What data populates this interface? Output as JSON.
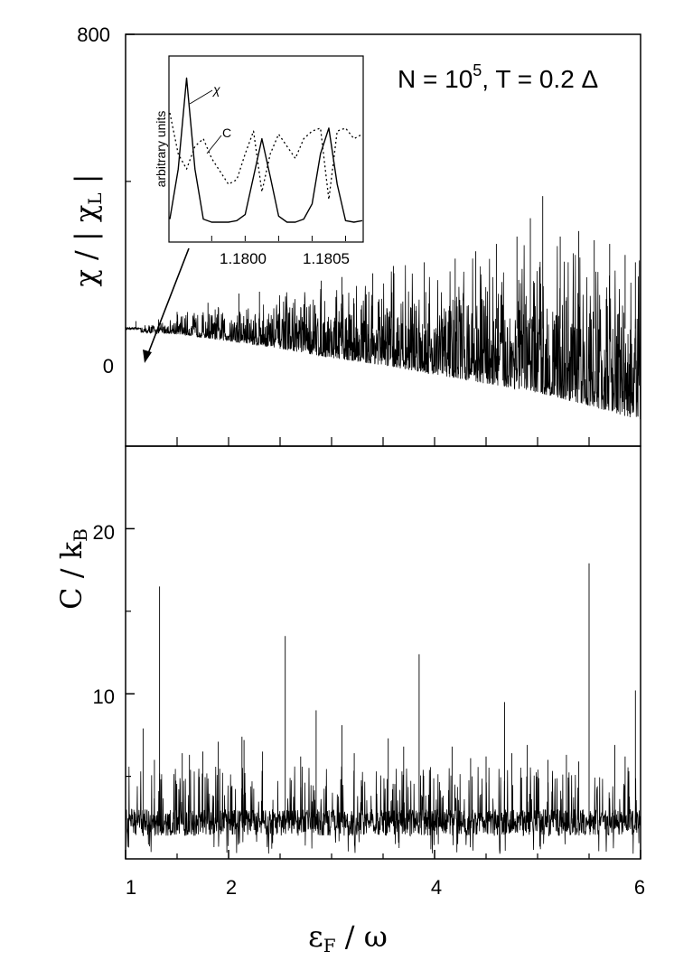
{
  "annotation": {
    "parameters_main": "N = 10",
    "parameters_exp": "5",
    "parameters_rest": ",  T = 0.2 Δ"
  },
  "chart_data": [
    {
      "id": "susceptibility",
      "type": "line",
      "ylabel_main": "χ / | χ",
      "ylabel_sub": "L",
      "ylabel_end": " |",
      "xlim": [
        1,
        6
      ],
      "ylim": [
        -320,
        800
      ],
      "yticks": [
        {
          "value": 0,
          "label": "0"
        },
        {
          "value": 800,
          "label": "800"
        }
      ],
      "yminor": [
        400
      ],
      "xminor": [
        1.5,
        2,
        2.5,
        3,
        3.5,
        4,
        4.5,
        5,
        5.5
      ],
      "series": [
        {
          "values_note_free": true,
          "envelope_x": [
            1.0,
            1.2,
            1.5,
            2.0,
            2.5,
            3.0,
            3.5,
            4.0,
            4.5,
            5.0,
            5.5,
            6.0
          ],
          "envelope_upper": [
            8,
            15,
            45,
            80,
            110,
            140,
            170,
            210,
            250,
            270,
            240,
            220
          ],
          "envelope_lower": [
            -5,
            -12,
            -15,
            -35,
            -55,
            -80,
            -100,
            -125,
            -150,
            -175,
            -210,
            -250
          ],
          "peak_x": [
            1.1,
            1.5,
            1.8,
            2.1,
            2.3,
            2.9,
            3.1,
            3.4,
            3.6,
            3.9,
            4.2,
            4.4,
            4.6,
            4.8,
            4.93,
            5.05,
            5.22,
            5.4,
            5.55,
            5.7,
            5.85,
            5.95
          ],
          "peak_y": [
            20,
            45,
            70,
            95,
            100,
            130,
            140,
            150,
            170,
            180,
            190,
            210,
            230,
            250,
            300,
            360,
            250,
            265,
            240,
            230,
            200,
            180
          ]
        }
      ],
      "inset": {
        "xlabel_ticks": [
          "1.1800",
          "1.1805"
        ],
        "ylabel": "arbitrary units",
        "series": [
          {
            "name": "χ",
            "x": [
              1.17955,
              1.1796,
              1.17965,
              1.1797,
              1.17975,
              1.1798,
              1.1799,
              1.17995,
              1.18,
              1.18005,
              1.1801,
              1.18015,
              1.1802,
              1.18025,
              1.1803,
              1.18035,
              1.1804,
              1.18045,
              1.1805,
              1.18055,
              1.1806,
              1.18065,
              1.1807
            ],
            "values": [
              0.02,
              0.35,
              0.95,
              0.35,
              0.02,
              0.0,
              0.0,
              0.01,
              0.05,
              0.3,
              0.55,
              0.3,
              0.04,
              0.0,
              0.0,
              0.02,
              0.12,
              0.45,
              0.62,
              0.25,
              0.01,
              0.0,
              0.01
            ]
          },
          {
            "name": "C",
            "x": [
              1.17955,
              1.1796,
              1.17965,
              1.1797,
              1.17975,
              1.1798,
              1.1799,
              1.17995,
              1.18,
              1.18005,
              1.1801,
              1.18015,
              1.1802,
              1.18025,
              1.1803,
              1.18035,
              1.1804,
              1.18045,
              1.1805,
              1.18055,
              1.1806,
              1.18065,
              1.1807
            ],
            "values": [
              0.72,
              0.45,
              0.35,
              0.5,
              0.55,
              0.42,
              0.25,
              0.28,
              0.45,
              0.6,
              0.2,
              0.45,
              0.58,
              0.5,
              0.42,
              0.55,
              0.6,
              0.62,
              0.15,
              0.6,
              0.62,
              0.55,
              0.58
            ]
          }
        ]
      }
    },
    {
      "id": "heat-capacity",
      "type": "line",
      "xlabel_main": "ε",
      "xlabel_sub": "F",
      "xlabel_end": " / ω",
      "ylabel_main": "C / k",
      "ylabel_sub": "B",
      "xlim": [
        1,
        6
      ],
      "ylim": [
        0,
        25
      ],
      "xticks": [
        {
          "value": 1,
          "label": "1"
        },
        {
          "value": 2,
          "label": "2"
        },
        {
          "value": 4,
          "label": "4"
        },
        {
          "value": 6,
          "label": "6"
        }
      ],
      "xminor": [
        1.5,
        2.5,
        3,
        3.5,
        4.5,
        5,
        5.5
      ],
      "yticks": [
        {
          "value": 10,
          "label": "10"
        },
        {
          "value": 20,
          "label": "20"
        }
      ],
      "yminor": [
        5,
        15
      ],
      "series": [
        {
          "baseline": 2.2,
          "spikes_x": [
            1.17,
            1.28,
            1.33,
            1.55,
            1.62,
            1.75,
            1.9,
            2.13,
            2.15,
            2.33,
            2.55,
            2.7,
            2.85,
            3.1,
            3.22,
            3.55,
            3.7,
            3.85,
            4.17,
            4.35,
            4.5,
            4.68,
            4.75,
            4.9,
            5.1,
            5.28,
            5.4,
            5.5,
            5.75,
            5.85,
            5.95
          ],
          "spikes_y": [
            7.9,
            6.0,
            16.5,
            6.4,
            6.3,
            6.5,
            7.1,
            7.4,
            7.2,
            6.5,
            13.5,
            6.2,
            9.0,
            8.1,
            6.4,
            7.3,
            6.8,
            12.4,
            6.8,
            6.1,
            6.2,
            9.5,
            6.4,
            6.9,
            6.0,
            6.3,
            5.9,
            17.9,
            6.9,
            6.2,
            10.2
          ]
        }
      ]
    }
  ]
}
